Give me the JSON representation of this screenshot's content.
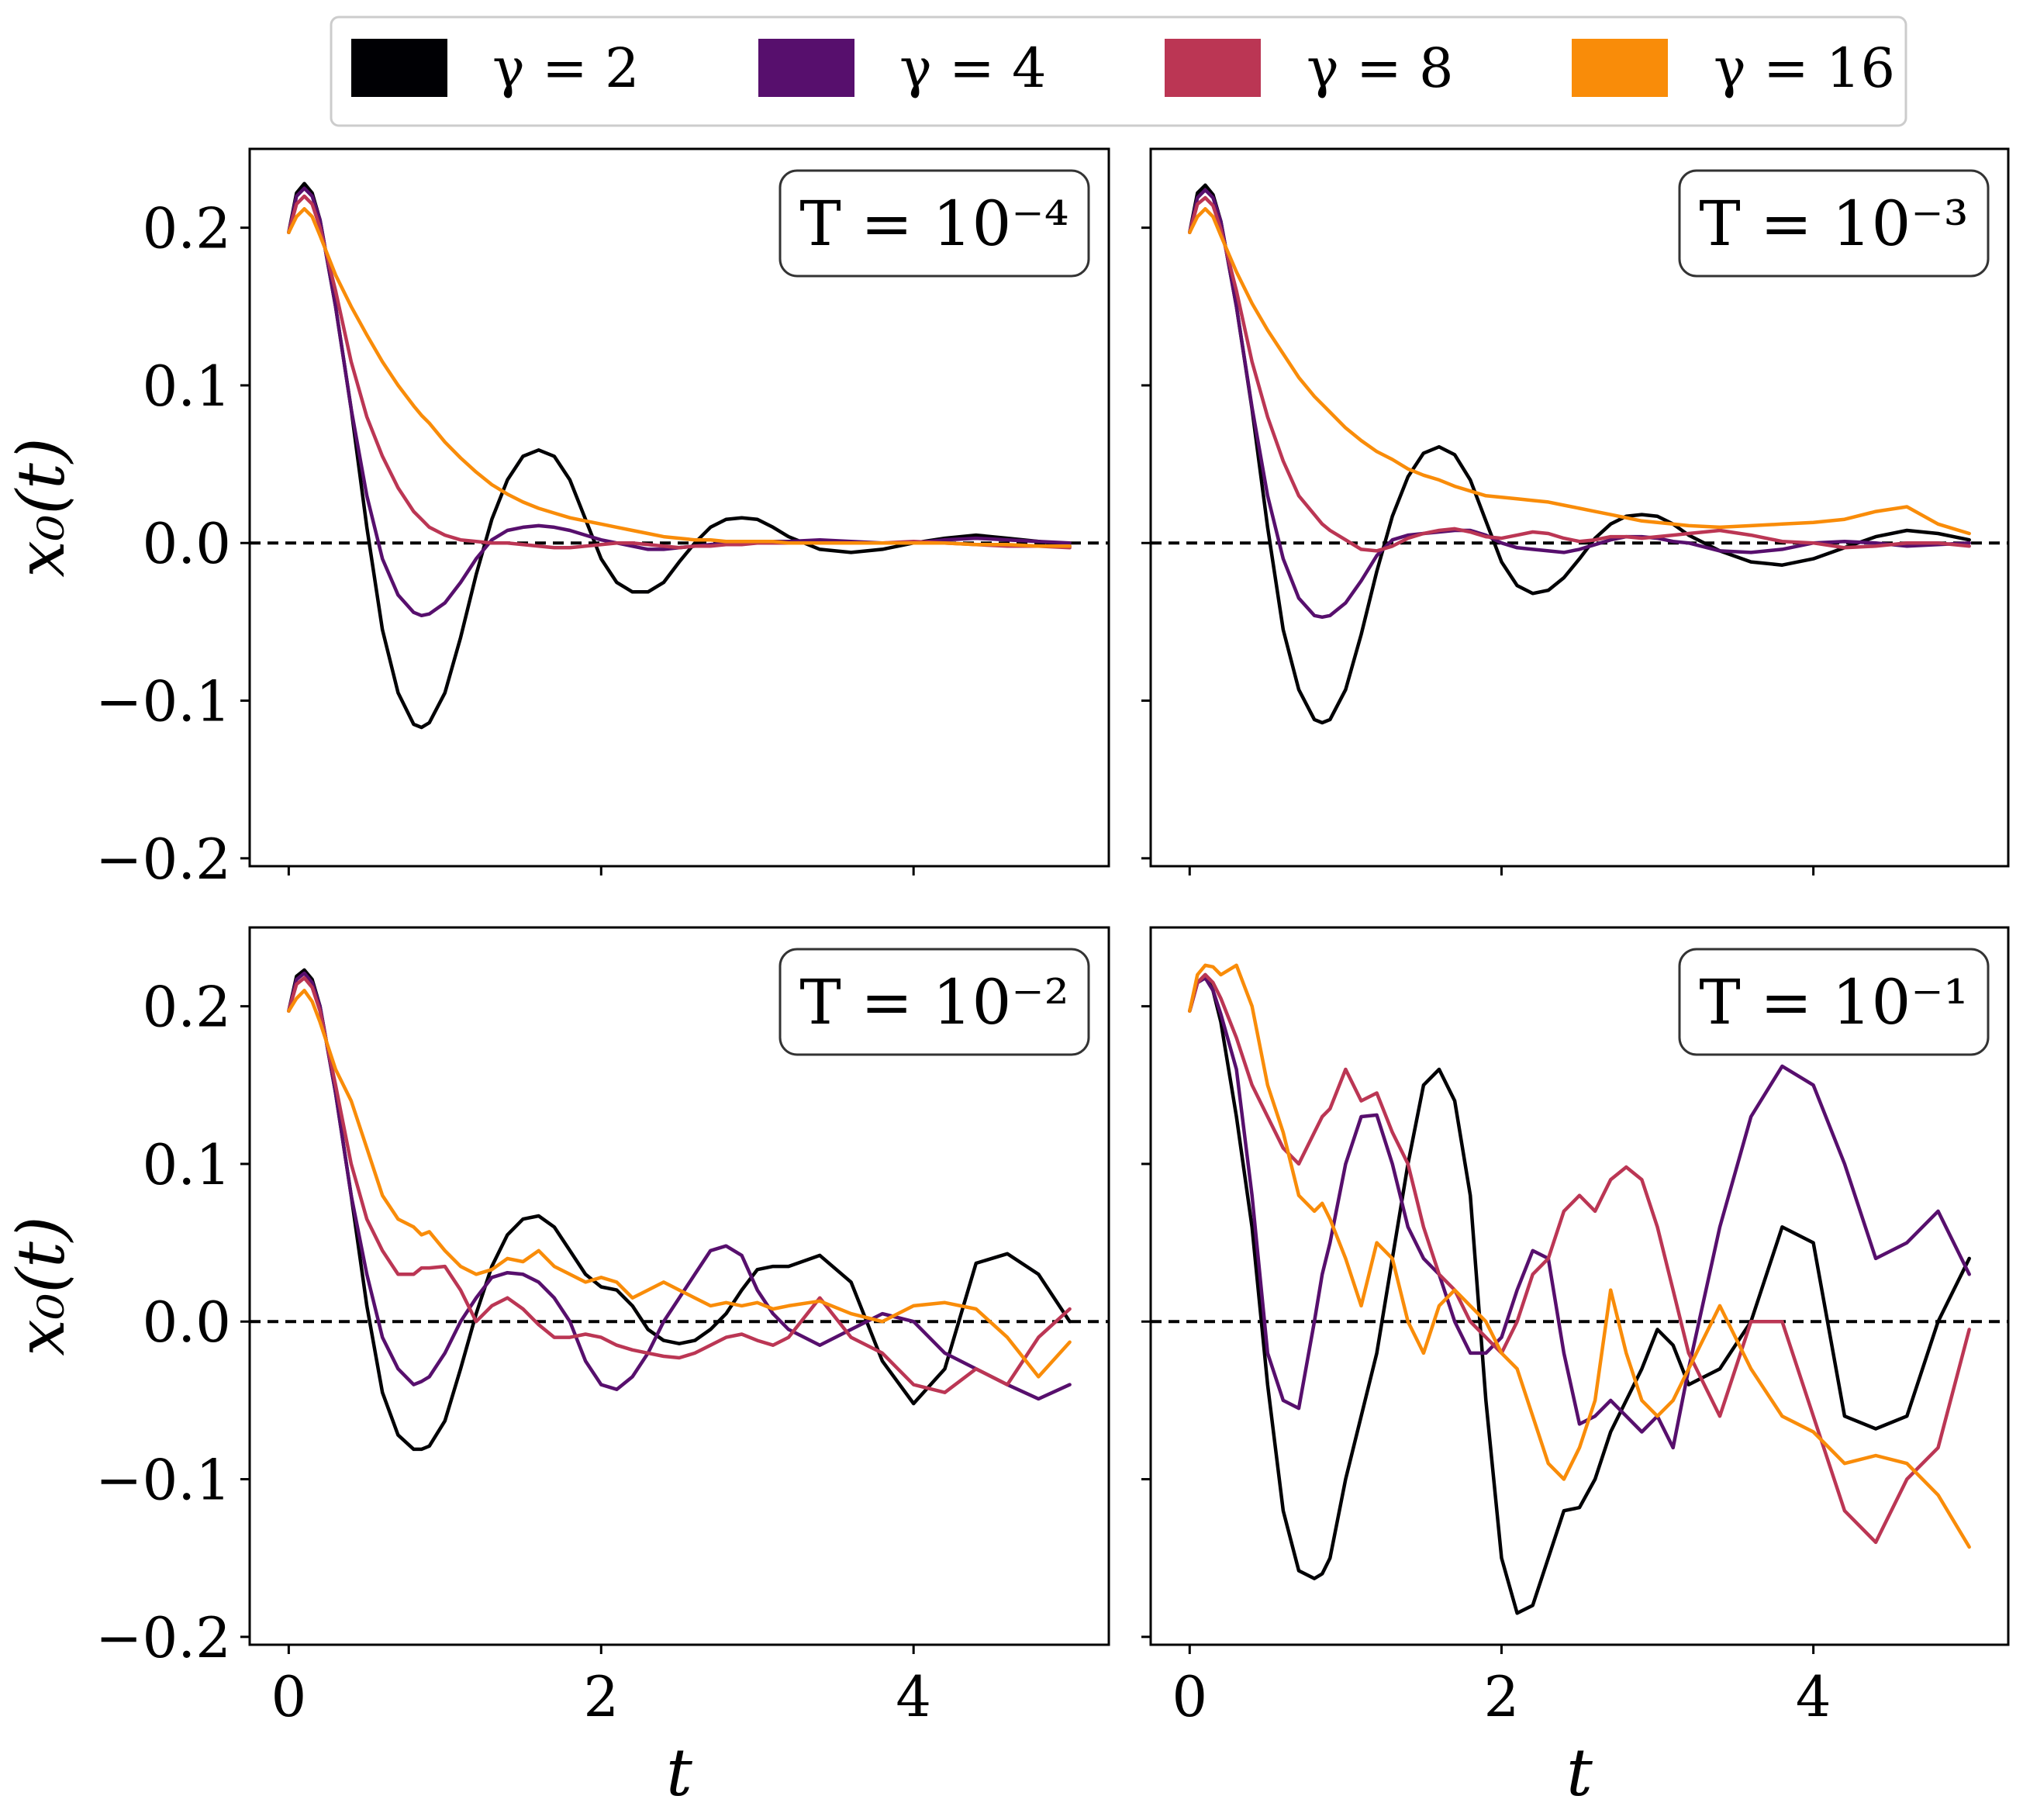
{
  "legend": {
    "entries": [
      {
        "label": "γ = 2",
        "color": "#000004"
      },
      {
        "label": "γ = 4",
        "color": "#570f6d"
      },
      {
        "label": "γ = 8",
        "color": "#bb3654"
      },
      {
        "label": "γ = 16",
        "color": "#f98c09"
      }
    ]
  },
  "chart_data": [
    {
      "type": "line",
      "annotation": "T = 10⁻⁴",
      "xlabel": "",
      "ylabel": "x₀(t)",
      "xlim": [
        -0.25,
        5.25
      ],
      "ylim": [
        -0.205,
        0.25
      ],
      "xticks": [
        0,
        2,
        4
      ],
      "yticks": [
        -0.2,
        -0.1,
        0.0,
        0.1,
        0.2
      ],
      "ytick_labels": [
        "−0.2",
        "−0.1",
        "0.0",
        "0.1",
        "0.2"
      ],
      "xtick_labels": [],
      "reference_line": {
        "y": 0,
        "style": "dashed"
      },
      "x": [
        0,
        0.05,
        0.1,
        0.15,
        0.2,
        0.3,
        0.4,
        0.5,
        0.6,
        0.7,
        0.8,
        0.85,
        0.9,
        1.0,
        1.1,
        1.2,
        1.3,
        1.4,
        1.5,
        1.6,
        1.7,
        1.8,
        1.9,
        2.0,
        2.1,
        2.2,
        2.3,
        2.4,
        2.5,
        2.6,
        2.7,
        2.8,
        2.9,
        3.0,
        3.1,
        3.2,
        3.4,
        3.6,
        3.8,
        4.0,
        4.2,
        4.4,
        4.6,
        4.8,
        5.0
      ],
      "series": [
        {
          "name": "γ = 2",
          "values": [
            0.197,
            0.222,
            0.228,
            0.222,
            0.205,
            0.15,
            0.085,
            0.01,
            -0.055,
            -0.095,
            -0.115,
            -0.117,
            -0.114,
            -0.095,
            -0.06,
            -0.02,
            0.015,
            0.04,
            0.055,
            0.059,
            0.055,
            0.04,
            0.015,
            -0.01,
            -0.025,
            -0.031,
            -0.031,
            -0.025,
            -0.012,
            0.0,
            0.01,
            0.015,
            0.016,
            0.015,
            0.01,
            0.004,
            -0.004,
            -0.006,
            -0.004,
            0.0,
            0.003,
            0.005,
            0.003,
            0.001,
            -0.002
          ]
        },
        {
          "name": "γ = 4",
          "values": [
            0.197,
            0.22,
            0.225,
            0.22,
            0.205,
            0.15,
            0.085,
            0.03,
            -0.01,
            -0.033,
            -0.044,
            -0.046,
            -0.045,
            -0.038,
            -0.025,
            -0.01,
            0.002,
            0.008,
            0.01,
            0.011,
            0.01,
            0.008,
            0.005,
            0.002,
            0.0,
            -0.002,
            -0.004,
            -0.004,
            -0.003,
            -0.002,
            -0.001,
            0.0,
            0.0,
            0.0,
            0.001,
            0.001,
            0.002,
            0.001,
            0.0,
            0.0,
            0.002,
            0.003,
            0.002,
            0.001,
            0.0
          ]
        },
        {
          "name": "γ = 8",
          "values": [
            0.197,
            0.215,
            0.22,
            0.215,
            0.2,
            0.16,
            0.115,
            0.08,
            0.055,
            0.035,
            0.02,
            0.015,
            0.01,
            0.005,
            0.002,
            0.001,
            0.0,
            0.0,
            -0.001,
            -0.002,
            -0.003,
            -0.003,
            -0.002,
            -0.001,
            0.0,
            0.0,
            -0.001,
            -0.002,
            -0.003,
            -0.002,
            -0.002,
            -0.001,
            -0.001,
            0.0,
            0.0,
            0.0,
            0.0,
            0.0,
            0.0,
            0.001,
            0.0,
            -0.001,
            -0.002,
            -0.002,
            -0.003
          ]
        },
        {
          "name": "γ = 16",
          "values": [
            0.197,
            0.207,
            0.212,
            0.207,
            0.195,
            0.17,
            0.15,
            0.132,
            0.115,
            0.1,
            0.087,
            0.081,
            0.076,
            0.064,
            0.054,
            0.045,
            0.037,
            0.031,
            0.026,
            0.022,
            0.019,
            0.016,
            0.014,
            0.012,
            0.01,
            0.008,
            0.006,
            0.004,
            0.003,
            0.002,
            0.002,
            0.001,
            0.001,
            0.001,
            0.001,
            0.0,
            0.0,
            0.0,
            0.0,
            0.0,
            0.0,
            -0.001,
            -0.001,
            -0.002,
            -0.002
          ]
        }
      ]
    },
    {
      "type": "line",
      "annotation": "T = 10⁻³",
      "xlabel": "",
      "ylabel": "",
      "xlim": [
        -0.25,
        5.25
      ],
      "ylim": [
        -0.205,
        0.25
      ],
      "xticks": [
        0,
        2,
        4
      ],
      "yticks": [
        -0.2,
        -0.1,
        0.0,
        0.1,
        0.2
      ],
      "ytick_labels": [],
      "xtick_labels": [],
      "reference_line": {
        "y": 0,
        "style": "dashed"
      },
      "x": [
        0,
        0.05,
        0.1,
        0.15,
        0.2,
        0.3,
        0.4,
        0.5,
        0.6,
        0.7,
        0.8,
        0.85,
        0.9,
        1.0,
        1.1,
        1.2,
        1.3,
        1.4,
        1.5,
        1.6,
        1.7,
        1.8,
        1.9,
        2.0,
        2.1,
        2.2,
        2.3,
        2.4,
        2.5,
        2.6,
        2.7,
        2.8,
        2.9,
        3.0,
        3.1,
        3.2,
        3.4,
        3.6,
        3.8,
        4.0,
        4.2,
        4.4,
        4.6,
        4.8,
        5.0
      ],
      "series": [
        {
          "name": "γ = 2",
          "values": [
            0.197,
            0.222,
            0.227,
            0.221,
            0.204,
            0.15,
            0.085,
            0.01,
            -0.055,
            -0.093,
            -0.112,
            -0.114,
            -0.112,
            -0.093,
            -0.058,
            -0.018,
            0.017,
            0.042,
            0.057,
            0.061,
            0.056,
            0.04,
            0.014,
            -0.012,
            -0.027,
            -0.032,
            -0.03,
            -0.022,
            -0.01,
            0.003,
            0.012,
            0.017,
            0.018,
            0.017,
            0.012,
            0.005,
            -0.005,
            -0.012,
            -0.014,
            -0.01,
            -0.003,
            0.004,
            0.008,
            0.006,
            0.002
          ]
        },
        {
          "name": "γ = 4",
          "values": [
            0.197,
            0.219,
            0.224,
            0.219,
            0.204,
            0.15,
            0.086,
            0.03,
            -0.01,
            -0.035,
            -0.046,
            -0.047,
            -0.046,
            -0.038,
            -0.024,
            -0.008,
            0.002,
            0.005,
            0.006,
            0.007,
            0.008,
            0.008,
            0.005,
            0.0,
            -0.003,
            -0.004,
            -0.005,
            -0.006,
            -0.004,
            -0.001,
            0.002,
            0.004,
            0.004,
            0.003,
            0.001,
            0.0,
            -0.005,
            -0.006,
            -0.004,
            0.0,
            0.001,
            0.0,
            -0.002,
            -0.001,
            0.0
          ]
        },
        {
          "name": "γ = 8",
          "values": [
            0.197,
            0.215,
            0.219,
            0.214,
            0.199,
            0.16,
            0.115,
            0.08,
            0.052,
            0.03,
            0.018,
            0.012,
            0.008,
            0.002,
            -0.004,
            -0.005,
            -0.002,
            0.003,
            0.006,
            0.008,
            0.009,
            0.007,
            0.004,
            0.003,
            0.005,
            0.007,
            0.006,
            0.003,
            0.001,
            0.002,
            0.004,
            0.004,
            0.003,
            0.004,
            0.005,
            0.006,
            0.008,
            0.005,
            0.001,
            0.0,
            -0.003,
            -0.002,
            0.0,
            0.0,
            -0.002
          ]
        },
        {
          "name": "γ = 16",
          "values": [
            0.197,
            0.207,
            0.212,
            0.207,
            0.195,
            0.172,
            0.152,
            0.135,
            0.12,
            0.105,
            0.093,
            0.088,
            0.083,
            0.073,
            0.065,
            0.058,
            0.053,
            0.047,
            0.043,
            0.04,
            0.036,
            0.033,
            0.03,
            0.029,
            0.028,
            0.027,
            0.026,
            0.024,
            0.022,
            0.02,
            0.018,
            0.016,
            0.014,
            0.013,
            0.012,
            0.011,
            0.01,
            0.011,
            0.012,
            0.013,
            0.015,
            0.02,
            0.023,
            0.012,
            0.006
          ]
        }
      ]
    },
    {
      "type": "line",
      "annotation": "T = 10⁻²",
      "xlabel": "t",
      "ylabel": "x₀(t)",
      "xlim": [
        -0.25,
        5.25
      ],
      "ylim": [
        -0.205,
        0.25
      ],
      "xticks": [
        0,
        2,
        4
      ],
      "yticks": [
        -0.2,
        -0.1,
        0.0,
        0.1,
        0.2
      ],
      "ytick_labels": [
        "−0.2",
        "−0.1",
        "0.0",
        "0.1",
        "0.2"
      ],
      "xtick_labels": [
        "0",
        "2",
        "4"
      ],
      "reference_line": {
        "y": 0,
        "style": "dashed"
      },
      "x": [
        0,
        0.05,
        0.1,
        0.15,
        0.2,
        0.3,
        0.4,
        0.5,
        0.6,
        0.7,
        0.8,
        0.85,
        0.9,
        1.0,
        1.1,
        1.2,
        1.3,
        1.4,
        1.5,
        1.6,
        1.7,
        1.8,
        1.9,
        2.0,
        2.1,
        2.2,
        2.3,
        2.4,
        2.5,
        2.6,
        2.7,
        2.8,
        2.9,
        3.0,
        3.1,
        3.2,
        3.4,
        3.6,
        3.8,
        4.0,
        4.2,
        4.4,
        4.6,
        4.8,
        5.0
      ],
      "series": [
        {
          "name": "γ = 2",
          "values": [
            0.197,
            0.219,
            0.223,
            0.217,
            0.2,
            0.145,
            0.08,
            0.01,
            -0.045,
            -0.072,
            -0.081,
            -0.081,
            -0.079,
            -0.063,
            -0.03,
            0.005,
            0.035,
            0.055,
            0.065,
            0.067,
            0.06,
            0.045,
            0.03,
            0.022,
            0.02,
            0.01,
            -0.005,
            -0.012,
            -0.014,
            -0.012,
            -0.005,
            0.005,
            0.02,
            0.033,
            0.035,
            0.035,
            0.042,
            0.025,
            -0.025,
            -0.052,
            -0.03,
            0.037,
            0.043,
            0.03,
            0.0
          ]
        },
        {
          "name": "γ = 4",
          "values": [
            0.197,
            0.217,
            0.221,
            0.215,
            0.2,
            0.145,
            0.08,
            0.03,
            -0.01,
            -0.03,
            -0.04,
            -0.038,
            -0.035,
            -0.02,
            0.0,
            0.015,
            0.028,
            0.031,
            0.03,
            0.025,
            0.015,
            0.0,
            -0.025,
            -0.04,
            -0.043,
            -0.035,
            -0.02,
            0.0,
            0.015,
            0.03,
            0.045,
            0.048,
            0.042,
            0.02,
            0.005,
            -0.005,
            -0.015,
            -0.005,
            0.005,
            0.0,
            -0.02,
            -0.03,
            -0.04,
            -0.049,
            -0.04
          ]
        },
        {
          "name": "γ = 8",
          "values": [
            0.197,
            0.214,
            0.218,
            0.212,
            0.197,
            0.15,
            0.1,
            0.065,
            0.045,
            0.03,
            0.03,
            0.034,
            0.034,
            0.035,
            0.02,
            0.0,
            0.01,
            0.015,
            0.008,
            -0.002,
            -0.01,
            -0.01,
            -0.008,
            -0.01,
            -0.015,
            -0.018,
            -0.02,
            -0.022,
            -0.023,
            -0.02,
            -0.015,
            -0.01,
            -0.008,
            -0.012,
            -0.015,
            -0.01,
            0.015,
            -0.01,
            -0.02,
            -0.04,
            -0.045,
            -0.03,
            -0.04,
            -0.01,
            0.008
          ]
        },
        {
          "name": "γ = 16",
          "values": [
            0.197,
            0.205,
            0.21,
            0.203,
            0.19,
            0.16,
            0.14,
            0.11,
            0.08,
            0.065,
            0.06,
            0.055,
            0.057,
            0.045,
            0.035,
            0.03,
            0.033,
            0.04,
            0.038,
            0.045,
            0.035,
            0.03,
            0.025,
            0.028,
            0.025,
            0.015,
            0.02,
            0.025,
            0.02,
            0.015,
            0.01,
            0.012,
            0.01,
            0.012,
            0.008,
            0.01,
            0.013,
            0.005,
            0.0,
            0.01,
            0.012,
            0.008,
            -0.01,
            -0.035,
            -0.013
          ]
        }
      ]
    },
    {
      "type": "line",
      "annotation": "T = 10⁻¹",
      "xlabel": "t",
      "ylabel": "",
      "xlim": [
        -0.25,
        5.25
      ],
      "ylim": [
        -0.205,
        0.25
      ],
      "xticks": [
        0,
        2,
        4
      ],
      "yticks": [
        -0.2,
        -0.1,
        0.0,
        0.1,
        0.2
      ],
      "ytick_labels": [],
      "xtick_labels": [
        "0",
        "2",
        "4"
      ],
      "reference_line": {
        "y": 0,
        "style": "dashed"
      },
      "x": [
        0,
        0.05,
        0.1,
        0.15,
        0.2,
        0.3,
        0.4,
        0.5,
        0.6,
        0.7,
        0.8,
        0.85,
        0.9,
        1.0,
        1.1,
        1.2,
        1.3,
        1.4,
        1.5,
        1.6,
        1.7,
        1.8,
        1.9,
        2.0,
        2.1,
        2.2,
        2.3,
        2.4,
        2.5,
        2.6,
        2.7,
        2.8,
        2.9,
        3.0,
        3.1,
        3.2,
        3.4,
        3.6,
        3.8,
        4.0,
        4.2,
        4.4,
        4.6,
        4.8,
        5.0
      ],
      "series": [
        {
          "name": "γ = 2",
          "values": [
            0.197,
            0.215,
            0.22,
            0.21,
            0.19,
            0.13,
            0.06,
            -0.04,
            -0.12,
            -0.158,
            -0.163,
            -0.16,
            -0.15,
            -0.1,
            -0.06,
            -0.02,
            0.04,
            0.1,
            0.15,
            0.16,
            0.14,
            0.08,
            -0.05,
            -0.15,
            -0.185,
            -0.18,
            -0.15,
            -0.12,
            -0.118,
            -0.1,
            -0.07,
            -0.05,
            -0.03,
            -0.005,
            -0.015,
            -0.04,
            -0.03,
            0.0,
            0.06,
            0.05,
            -0.06,
            -0.068,
            -0.06,
            0.0,
            0.04
          ]
        },
        {
          "name": "γ = 4",
          "values": [
            0.197,
            0.215,
            0.218,
            0.21,
            0.195,
            0.16,
            0.08,
            -0.02,
            -0.05,
            -0.055,
            0.0,
            0.03,
            0.05,
            0.1,
            0.13,
            0.131,
            0.1,
            0.06,
            0.04,
            0.03,
            0.0,
            -0.02,
            -0.02,
            -0.01,
            0.02,
            0.045,
            0.04,
            -0.02,
            -0.065,
            -0.06,
            -0.05,
            -0.06,
            -0.07,
            -0.06,
            -0.08,
            -0.03,
            0.06,
            0.13,
            0.162,
            0.15,
            0.1,
            0.04,
            0.05,
            0.07,
            0.03
          ]
        },
        {
          "name": "γ = 8",
          "values": [
            0.197,
            0.215,
            0.22,
            0.215,
            0.205,
            0.18,
            0.15,
            0.13,
            0.11,
            0.1,
            0.12,
            0.13,
            0.135,
            0.16,
            0.14,
            0.145,
            0.12,
            0.1,
            0.06,
            0.03,
            0.02,
            0.0,
            -0.01,
            -0.02,
            0.0,
            0.03,
            0.04,
            0.07,
            0.08,
            0.07,
            0.09,
            0.098,
            0.09,
            0.06,
            0.02,
            -0.02,
            -0.06,
            0.0,
            0.0,
            -0.06,
            -0.12,
            -0.14,
            -0.1,
            -0.08,
            -0.005
          ]
        },
        {
          "name": "γ = 16",
          "values": [
            0.197,
            0.22,
            0.226,
            0.225,
            0.22,
            0.226,
            0.2,
            0.15,
            0.12,
            0.08,
            0.07,
            0.075,
            0.065,
            0.04,
            0.01,
            0.05,
            0.04,
            0.0,
            -0.02,
            0.01,
            0.02,
            0.01,
            0.0,
            -0.02,
            -0.03,
            -0.06,
            -0.09,
            -0.1,
            -0.08,
            -0.05,
            0.02,
            -0.02,
            -0.05,
            -0.06,
            -0.05,
            -0.03,
            0.01,
            -0.03,
            -0.06,
            -0.07,
            -0.09,
            -0.085,
            -0.09,
            -0.11,
            -0.143
          ]
        }
      ]
    }
  ]
}
